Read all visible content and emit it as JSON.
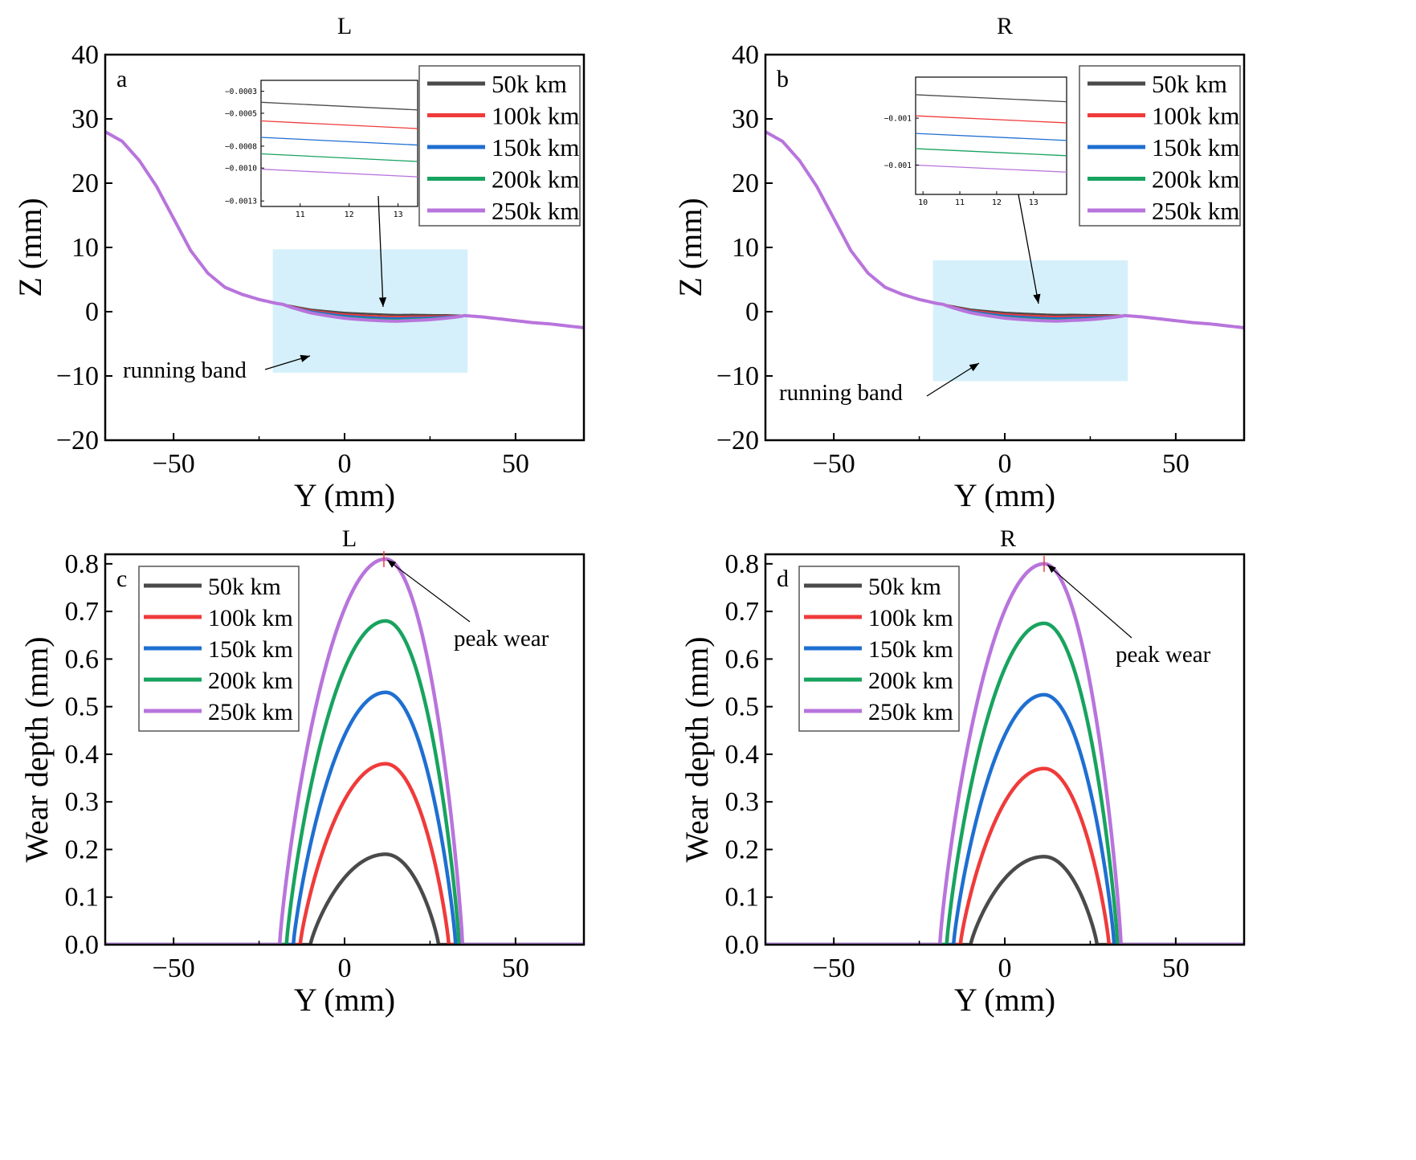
{
  "colors": {
    "50k": "#4a4a4a",
    "100k": "#ef3b3b",
    "150k": "#1f6fd1",
    "200k": "#18a35f",
    "250k": "#b874dc",
    "band": "#d6f0fb"
  },
  "chart_data": [
    {
      "id": "a",
      "type": "line",
      "panel_label": "a",
      "title": "L",
      "xlabel": "Y (mm)",
      "ylabel": "Z (mm)",
      "xlim": [
        -70,
        70
      ],
      "ylim": [
        -20,
        40
      ],
      "xticks": [
        -50,
        0,
        50
      ],
      "yticks": [
        40,
        30,
        20,
        10,
        0,
        -10,
        -20
      ],
      "xtick_labels": [
        "−50",
        "0",
        "50"
      ],
      "ytick_labels": [
        "40",
        "30",
        "20",
        "10",
        "0",
        "−10",
        "−20"
      ],
      "legend_position": "top-right",
      "series": [
        {
          "name": "50k km",
          "color_key": "50k"
        },
        {
          "name": "100k km",
          "color_key": "100k"
        },
        {
          "name": "150k km",
          "color_key": "150k"
        },
        {
          "name": "200k km",
          "color_key": "200k"
        },
        {
          "name": "250k km",
          "color_key": "250k"
        }
      ],
      "base_profile": {
        "x": [
          -70,
          -65,
          -60,
          -55,
          -50,
          -45,
          -40,
          -35,
          -30,
          -25,
          -20,
          -15,
          -10,
          -5,
          0,
          5,
          10,
          15,
          20,
          25,
          30,
          35,
          40,
          45,
          50,
          55,
          60,
          65,
          70
        ],
        "y": [
          28,
          26.5,
          23.5,
          19.5,
          14.5,
          9.5,
          6,
          3.8,
          2.7,
          1.9,
          1.3,
          0.9,
          0.5,
          0.3,
          0.1,
          0,
          -0.1,
          -0.2,
          -0.2,
          -0.3,
          -0.4,
          -0.6,
          -0.8,
          -1.1,
          -1.4,
          -1.7,
          -1.9,
          -2.2,
          -2.5
        ]
      },
      "wear_region": [
        -18,
        35
      ],
      "wear_peak_depth": [
        0.19,
        0.38,
        0.53,
        0.68,
        0.81
      ],
      "running_band": {
        "label": "running band",
        "x_range": [
          -21,
          36
        ],
        "y_range": [
          -9.5,
          9.7
        ]
      },
      "inset": {
        "x_range": [
          10.2,
          13.4
        ],
        "y_range": [
          -0.00135,
          -0.0002
        ],
        "xticks": [
          11,
          12,
          13
        ],
        "xtick_labels": [
          "11",
          "12",
          "13"
        ],
        "yticks": [
          -0.0003,
          -0.0005,
          -0.0008,
          -0.001,
          -0.0013
        ],
        "ytick_labels": [
          "−0.0003",
          "−0.0005",
          "−0.0008",
          "−0.0010",
          "−0.0013"
        ],
        "lines": [
          {
            "y_start": -0.0004,
            "y_end": -0.00047
          },
          {
            "y_start": -0.00057,
            "y_end": -0.00064
          },
          {
            "y_start": -0.00072,
            "y_end": -0.00079
          },
          {
            "y_start": -0.00087,
            "y_end": -0.00094
          },
          {
            "y_start": -0.00101,
            "y_end": -0.00108
          }
        ]
      }
    },
    {
      "id": "b",
      "type": "line",
      "panel_label": "b",
      "title": "R",
      "xlabel": "Y (mm)",
      "ylabel": "Z (mm)",
      "xlim": [
        -70,
        70
      ],
      "ylim": [
        -20,
        40
      ],
      "xticks": [
        -50,
        0,
        50
      ],
      "yticks": [
        40,
        30,
        20,
        10,
        0,
        -10,
        -20
      ],
      "xtick_labels": [
        "−50",
        "0",
        "50"
      ],
      "ytick_labels": [
        "40",
        "30",
        "20",
        "10",
        "0",
        "−10",
        "−20"
      ],
      "legend_position": "top-right",
      "series": [
        {
          "name": "50k km",
          "color_key": "50k"
        },
        {
          "name": "100k km",
          "color_key": "100k"
        },
        {
          "name": "150k km",
          "color_key": "150k"
        },
        {
          "name": "200k km",
          "color_key": "200k"
        },
        {
          "name": "250k km",
          "color_key": "250k"
        }
      ],
      "base_profile": {
        "x": [
          -70,
          -65,
          -60,
          -55,
          -50,
          -45,
          -40,
          -35,
          -30,
          -25,
          -20,
          -15,
          -10,
          -5,
          0,
          5,
          10,
          15,
          20,
          25,
          30,
          35,
          40,
          45,
          50,
          55,
          60,
          65,
          70
        ],
        "y": [
          28,
          26.5,
          23.5,
          19.5,
          14.5,
          9.5,
          6,
          3.8,
          2.7,
          1.9,
          1.3,
          0.9,
          0.5,
          0.3,
          0.1,
          0,
          -0.1,
          -0.2,
          -0.2,
          -0.3,
          -0.4,
          -0.6,
          -0.8,
          -1.1,
          -1.4,
          -1.7,
          -1.9,
          -2.2,
          -2.5
        ]
      },
      "wear_region": [
        -18,
        35
      ],
      "wear_peak_depth": [
        0.185,
        0.37,
        0.525,
        0.675,
        0.8
      ],
      "running_band": {
        "label": "running band",
        "x_range": [
          -21,
          36
        ],
        "y_range": [
          -10.8,
          8
        ]
      },
      "inset": {
        "x_range": [
          9.8,
          13.9
        ],
        "y_range": [
          -0.00145,
          -0.00045
        ],
        "xticks": [
          10,
          11,
          12,
          13
        ],
        "xtick_labels": [
          "10",
          "11",
          "12",
          "13"
        ],
        "yticks": [
          -0.0008,
          -0.0012
        ],
        "ytick_labels": [
          "−0.001",
          "−0.001"
        ],
        "lines": [
          {
            "y_start": -0.0006,
            "y_end": -0.00066
          },
          {
            "y_start": -0.00078,
            "y_end": -0.00084
          },
          {
            "y_start": -0.00093,
            "y_end": -0.00099
          },
          {
            "y_start": -0.00106,
            "y_end": -0.00112
          },
          {
            "y_start": -0.0012,
            "y_end": -0.00126
          }
        ]
      }
    },
    {
      "id": "c",
      "type": "line",
      "panel_label": "c",
      "title": "L",
      "xlabel": "Y (mm)",
      "ylabel": "Wear depth (mm)",
      "xlim": [
        -70,
        70
      ],
      "ylim": [
        0,
        0.82
      ],
      "xticks": [
        -50,
        0,
        50
      ],
      "yticks": [
        0.0,
        0.1,
        0.2,
        0.3,
        0.4,
        0.5,
        0.6,
        0.7,
        0.8
      ],
      "xtick_labels": [
        "−50",
        "0",
        "50"
      ],
      "ytick_labels": [
        "0.0",
        "0.1",
        "0.2",
        "0.3",
        "0.4",
        "0.5",
        "0.6",
        "0.7",
        "0.8"
      ],
      "legend_position": "top-left",
      "annotation": {
        "text": "peak wear",
        "x": 11.5,
        "y": 0.81
      },
      "series": [
        {
          "name": "50k km",
          "color_key": "50k",
          "peak": 0.19,
          "x_start": -10,
          "x_end": 27.5,
          "peak_x": 12
        },
        {
          "name": "100k km",
          "color_key": "100k",
          "peak": 0.38,
          "x_start": -13,
          "x_end": 30.5,
          "peak_x": 12
        },
        {
          "name": "150k km",
          "color_key": "150k",
          "peak": 0.53,
          "x_start": -15,
          "x_end": 32.5,
          "peak_x": 12
        },
        {
          "name": "200k km",
          "color_key": "200k",
          "peak": 0.68,
          "x_start": -17,
          "x_end": 33.5,
          "peak_x": 12
        },
        {
          "name": "250k km",
          "color_key": "250k",
          "peak": 0.81,
          "x_start": -19,
          "x_end": 34.5,
          "peak_x": 12
        }
      ]
    },
    {
      "id": "d",
      "type": "line",
      "panel_label": "d",
      "title": "R",
      "xlabel": "Y (mm)",
      "ylabel": "Wear depth (mm)",
      "xlim": [
        -70,
        70
      ],
      "ylim": [
        0,
        0.82
      ],
      "xticks": [
        -50,
        0,
        50
      ],
      "yticks": [
        0.0,
        0.1,
        0.2,
        0.3,
        0.4,
        0.5,
        0.6,
        0.7,
        0.8
      ],
      "xtick_labels": [
        "−50",
        "0",
        "50"
      ],
      "ytick_labels": [
        "0.0",
        "0.1",
        "0.2",
        "0.3",
        "0.4",
        "0.5",
        "0.6",
        "0.7",
        "0.8"
      ],
      "legend_position": "top-left",
      "annotation": {
        "text": "peak wear",
        "x": 11.5,
        "y": 0.8
      },
      "series": [
        {
          "name": "50k km",
          "color_key": "50k",
          "peak": 0.185,
          "x_start": -10,
          "x_end": 27,
          "peak_x": 11.5
        },
        {
          "name": "100k km",
          "color_key": "100k",
          "peak": 0.37,
          "x_start": -13,
          "x_end": 30.5,
          "peak_x": 11.5
        },
        {
          "name": "150k km",
          "color_key": "150k",
          "peak": 0.525,
          "x_start": -15,
          "x_end": 32,
          "peak_x": 11.5
        },
        {
          "name": "200k km",
          "color_key": "200k",
          "peak": 0.675,
          "x_start": -17,
          "x_end": 33,
          "peak_x": 11.5
        },
        {
          "name": "250k km",
          "color_key": "250k",
          "peak": 0.8,
          "x_start": -19,
          "x_end": 34,
          "peak_x": 11.5
        }
      ]
    }
  ]
}
